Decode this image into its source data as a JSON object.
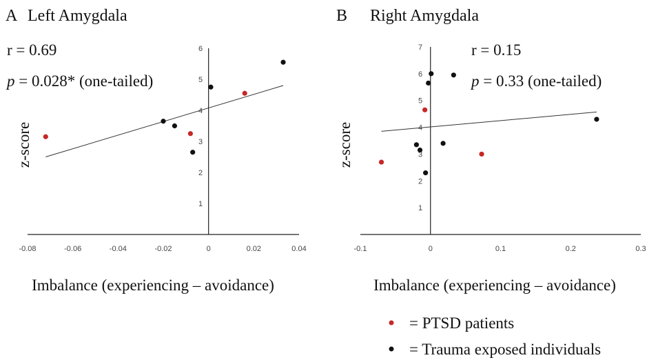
{
  "chart_data": [
    {
      "type": "scatter",
      "panel": "A",
      "title": "Left Amygdala",
      "r_text": "r = 0.69",
      "p_italic": "p",
      "p_rest": " = 0.028* (one-tailed)",
      "xlabel": "Imbalance (experiencing – avoidance)",
      "ylabel": "z-score",
      "xlim": [
        -0.08,
        0.04
      ],
      "ylim": [
        0,
        6
      ],
      "xticks": [
        "-0.08",
        "-0.06",
        "-0.04",
        "-0.02",
        "0",
        "0.02",
        "0.04"
      ],
      "yticks": [
        "1",
        "2",
        "3",
        "4",
        "5",
        "6"
      ],
      "grid": false,
      "trendline": [
        [
          -0.072,
          2.5
        ],
        [
          0.033,
          4.8
        ]
      ],
      "series": [
        {
          "name": "PTSD patients",
          "color": "#c62828",
          "points": [
            [
              -0.072,
              3.15
            ],
            [
              -0.008,
              3.25
            ],
            [
              0.016,
              4.55
            ]
          ]
        },
        {
          "name": "Trauma exposed individuals",
          "color": "#111111",
          "points": [
            [
              -0.02,
              3.65
            ],
            [
              -0.015,
              3.5
            ],
            [
              -0.007,
              2.65
            ],
            [
              0.001,
              4.75
            ],
            [
              0.033,
              5.55
            ]
          ]
        }
      ]
    },
    {
      "type": "scatter",
      "panel": "B",
      "title": "Right Amygdala",
      "r_text": "r = 0.15",
      "p_italic": "p",
      "p_rest": " = 0.33 (one-tailed)",
      "xlabel": "Imbalance (experiencing – avoidance)",
      "ylabel": "z-score",
      "xlim": [
        -0.1,
        0.3
      ],
      "ylim": [
        0,
        7
      ],
      "xticks": [
        "-0.1",
        "0",
        "0.1",
        "0.2",
        "0.3"
      ],
      "yticks": [
        "1",
        "2",
        "3",
        "4",
        "5",
        "6",
        "7"
      ],
      "grid": false,
      "trendline": [
        [
          -0.07,
          3.85
        ],
        [
          0.237,
          4.57
        ]
      ],
      "series": [
        {
          "name": "PTSD patients",
          "color": "#c62828",
          "points": [
            [
              -0.07,
              2.7
            ],
            [
              -0.008,
              4.65
            ],
            [
              0.073,
              3.0
            ]
          ]
        },
        {
          "name": "Trauma exposed individuals",
          "color": "#111111",
          "points": [
            [
              -0.02,
              3.35
            ],
            [
              -0.015,
              3.15
            ],
            [
              -0.007,
              2.3
            ],
            [
              -0.003,
              5.65
            ],
            [
              0.001,
              6.0
            ],
            [
              0.018,
              3.4
            ],
            [
              0.033,
              5.95
            ],
            [
              0.237,
              4.3
            ]
          ]
        }
      ]
    }
  ],
  "legend": [
    {
      "marker_color": "#c62828",
      "label": "= PTSD patients"
    },
    {
      "marker_color": "#111111",
      "label": "= Trauma exposed individuals"
    }
  ]
}
